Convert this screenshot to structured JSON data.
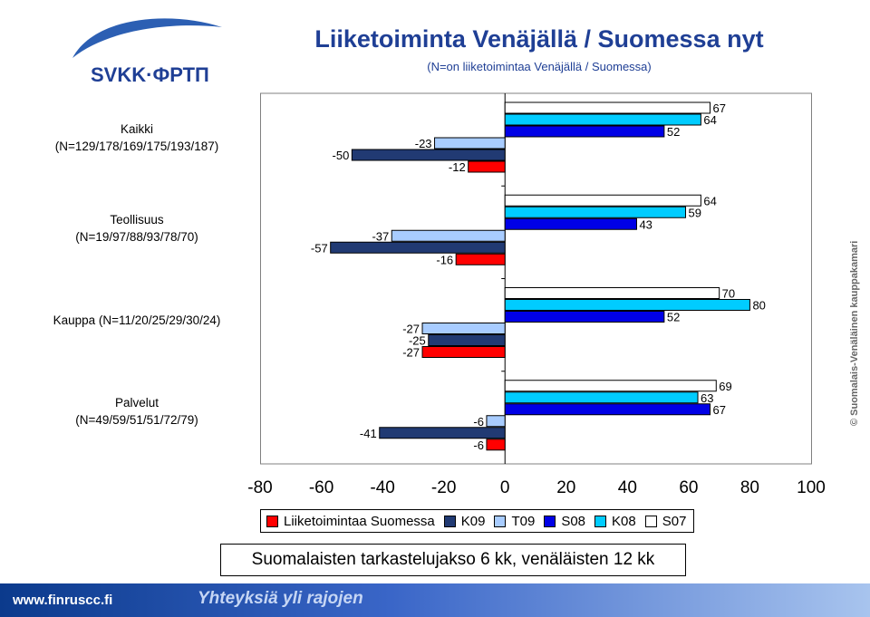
{
  "header": {
    "logo_text": "SVKK·ФРТП",
    "title": "Liiketoiminta Venäjällä / Suomessa nyt",
    "subtitle": "(N=on liiketoimintaa Venäjällä / Suomessa)"
  },
  "categories": [
    {
      "line1": "Kaikki",
      "line2": "(N=129/178/169/175/193/187)"
    },
    {
      "line1": "Teollisuus",
      "line2": "(N=19/97/88/93/78/70)"
    },
    {
      "line1": "Kauppa (N=11/20/25/29/30/24)",
      "line2": ""
    },
    {
      "line1": "Palvelut",
      "line2": "(N=49/59/51/51/72/79)"
    }
  ],
  "colors": {
    "Liiketoimintaa Suomessa": "#ff0000",
    "K09": "#213a73",
    "T09": "#a8ccff",
    "S08": "#0000e6",
    "K08": "#00ccff",
    "S07": "#ffffff"
  },
  "chart_data": {
    "type": "bar",
    "orientation": "horizontal",
    "categories": [
      "Kaikki",
      "Teollisuus",
      "Kauppa",
      "Palvelut"
    ],
    "series": [
      {
        "name": "Liiketoimintaa Suomessa",
        "values": [
          -12,
          -16,
          -27,
          -6
        ]
      },
      {
        "name": "K09",
        "values": [
          -50,
          -57,
          -25,
          -41
        ]
      },
      {
        "name": "T09",
        "values": [
          -23,
          -37,
          -27,
          -6
        ]
      },
      {
        "name": "S08",
        "values": [
          52,
          43,
          52,
          67
        ]
      },
      {
        "name": "K08",
        "values": [
          64,
          59,
          80,
          63
        ]
      },
      {
        "name": "S07",
        "values": [
          67,
          64,
          70,
          69
        ]
      }
    ],
    "xlim": [
      -80,
      100
    ],
    "xticks": [
      "-80",
      "-60",
      "-40",
      "-20",
      "0",
      "20",
      "40",
      "60",
      "80",
      "100"
    ],
    "legend_position": "bottom",
    "grid": false
  },
  "side_note": "© Suomalais-Venäläinen kauppakamari",
  "note": "Suomalaisten tarkastelujakso 6 kk, venäläisten 12 kk",
  "footer": {
    "url": "www.finruscc.fi",
    "slogan": "Yhteyksiä yli rajojen"
  }
}
